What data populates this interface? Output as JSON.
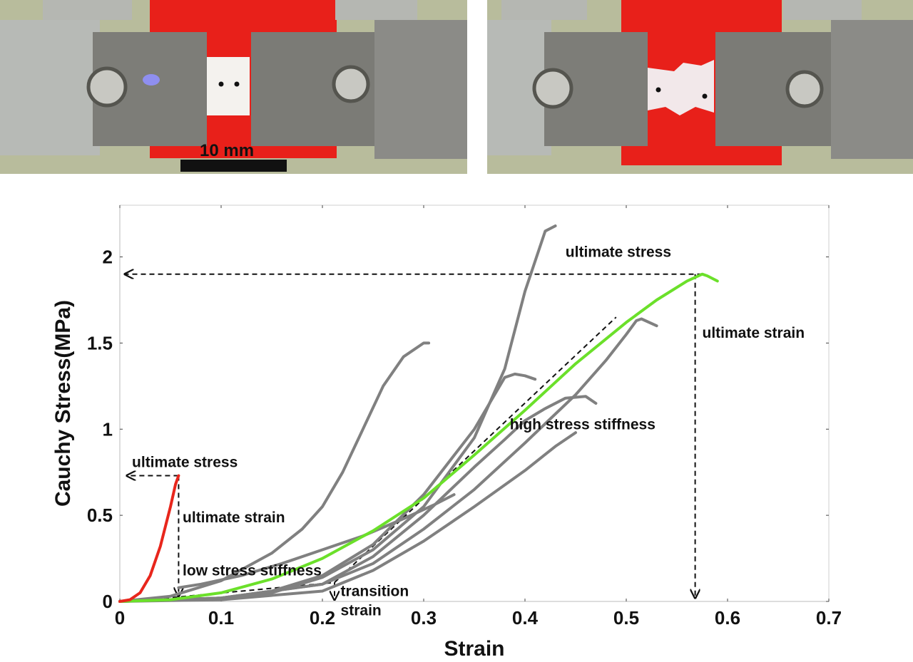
{
  "photos": {
    "scale_bar_label": "10 mm",
    "colors": {
      "background_card": "#e8201a",
      "clamp_metal": "#7d7d78",
      "grip_metal": "#b9bcb8",
      "specimen": "#f4f2ee"
    }
  },
  "chart_data": {
    "type": "line",
    "title": "",
    "xlabel": "Strain",
    "ylabel": "Cauchy Stress(MPa)",
    "xlim": [
      0,
      0.7
    ],
    "ylim": [
      0,
      2.3
    ],
    "xticks": [
      0,
      0.1,
      0.2,
      0.3,
      0.4,
      0.5,
      0.6,
      0.7
    ],
    "xtick_labels": [
      "0",
      "0.1",
      "0.2",
      "0.3",
      "0.4",
      "0.5",
      "0.6",
      "0.7"
    ],
    "yticks": [
      0,
      0.5,
      1,
      1.5,
      2
    ],
    "ytick_labels": [
      "0",
      "0.5",
      "1",
      "1.5",
      "2"
    ],
    "grid": false,
    "colors": {
      "red": "#e8261c",
      "green": "#6be02a",
      "gray": "#808080",
      "dashed": "#111111"
    },
    "series": [
      {
        "color": "red",
        "points": [
          [
            0,
            0
          ],
          [
            0.01,
            0.01
          ],
          [
            0.02,
            0.05
          ],
          [
            0.03,
            0.15
          ],
          [
            0.04,
            0.32
          ],
          [
            0.05,
            0.55
          ],
          [
            0.055,
            0.68
          ],
          [
            0.058,
            0.73
          ]
        ]
      },
      {
        "color": "green",
        "points": [
          [
            0,
            0
          ],
          [
            0.05,
            0.01
          ],
          [
            0.1,
            0.05
          ],
          [
            0.15,
            0.13
          ],
          [
            0.2,
            0.25
          ],
          [
            0.25,
            0.41
          ],
          [
            0.3,
            0.6
          ],
          [
            0.35,
            0.85
          ],
          [
            0.4,
            1.11
          ],
          [
            0.45,
            1.38
          ],
          [
            0.5,
            1.62
          ],
          [
            0.53,
            1.75
          ],
          [
            0.56,
            1.86
          ],
          [
            0.575,
            1.9
          ],
          [
            0.58,
            1.89
          ],
          [
            0.59,
            1.86
          ]
        ]
      },
      {
        "color": "gray",
        "points": [
          [
            0,
            0
          ],
          [
            0.1,
            0.02
          ],
          [
            0.15,
            0.06
          ],
          [
            0.2,
            0.15
          ],
          [
            0.25,
            0.33
          ],
          [
            0.3,
            0.62
          ],
          [
            0.35,
            1.0
          ],
          [
            0.38,
            1.3
          ],
          [
            0.39,
            1.32
          ],
          [
            0.4,
            1.31
          ],
          [
            0.41,
            1.29
          ]
        ]
      },
      {
        "color": "gray",
        "points": [
          [
            0,
            0
          ],
          [
            0.1,
            0.02
          ],
          [
            0.15,
            0.05
          ],
          [
            0.2,
            0.14
          ],
          [
            0.25,
            0.3
          ],
          [
            0.3,
            0.55
          ],
          [
            0.35,
            0.95
          ],
          [
            0.38,
            1.35
          ],
          [
            0.4,
            1.8
          ],
          [
            0.42,
            2.15
          ],
          [
            0.43,
            2.18
          ]
        ]
      },
      {
        "color": "gray",
        "points": [
          [
            0,
            0
          ],
          [
            0.1,
            0.02
          ],
          [
            0.2,
            0.1
          ],
          [
            0.25,
            0.22
          ],
          [
            0.3,
            0.42
          ],
          [
            0.35,
            0.65
          ],
          [
            0.4,
            0.92
          ],
          [
            0.45,
            1.2
          ],
          [
            0.48,
            1.4
          ],
          [
            0.5,
            1.55
          ],
          [
            0.51,
            1.63
          ],
          [
            0.515,
            1.64
          ],
          [
            0.53,
            1.6
          ]
        ]
      },
      {
        "color": "gray",
        "points": [
          [
            0,
            0
          ],
          [
            0.1,
            0.02
          ],
          [
            0.2,
            0.1
          ],
          [
            0.25,
            0.26
          ],
          [
            0.3,
            0.5
          ],
          [
            0.35,
            0.78
          ],
          [
            0.38,
            0.94
          ],
          [
            0.4,
            1.05
          ],
          [
            0.42,
            1.12
          ],
          [
            0.44,
            1.18
          ],
          [
            0.46,
            1.19
          ],
          [
            0.47,
            1.15
          ]
        ]
      },
      {
        "color": "gray",
        "points": [
          [
            0,
            0
          ],
          [
            0.05,
            0.03
          ],
          [
            0.1,
            0.12
          ],
          [
            0.15,
            0.28
          ],
          [
            0.18,
            0.42
          ],
          [
            0.2,
            0.55
          ],
          [
            0.22,
            0.75
          ],
          [
            0.24,
            1.0
          ],
          [
            0.26,
            1.25
          ],
          [
            0.28,
            1.42
          ],
          [
            0.3,
            1.5
          ],
          [
            0.305,
            1.5
          ]
        ]
      },
      {
        "color": "gray",
        "points": [
          [
            0.058,
            0.08
          ],
          [
            0.08,
            0.1
          ],
          [
            0.12,
            0.15
          ],
          [
            0.16,
            0.22
          ],
          [
            0.2,
            0.3
          ],
          [
            0.24,
            0.38
          ],
          [
            0.28,
            0.48
          ],
          [
            0.31,
            0.56
          ],
          [
            0.33,
            0.62
          ]
        ]
      },
      {
        "color": "gray",
        "points": [
          [
            0,
            0
          ],
          [
            0.1,
            0.01
          ],
          [
            0.2,
            0.06
          ],
          [
            0.25,
            0.18
          ],
          [
            0.3,
            0.35
          ],
          [
            0.35,
            0.55
          ],
          [
            0.4,
            0.76
          ],
          [
            0.43,
            0.9
          ],
          [
            0.45,
            0.98
          ]
        ]
      }
    ],
    "annotations": [
      {
        "text": "ultimate stress",
        "x": 0.44,
        "y": 2.0
      },
      {
        "text": "ultimate strain",
        "x": 0.575,
        "y": 1.53
      },
      {
        "text": "high stress stiffness",
        "x": 0.385,
        "y": 1.0
      },
      {
        "text": "ultimate stress",
        "x": 0.012,
        "y": 0.78
      },
      {
        "text": "ultimate strain",
        "x": 0.062,
        "y": 0.46
      },
      {
        "text": "low stress stiffness",
        "x": 0.062,
        "y": 0.15
      },
      {
        "text": "transition",
        "x": 0.218,
        "y": 0.03
      },
      {
        "text": "strain",
        "x": 0.218,
        "y": -0.08
      }
    ],
    "dashed_lines": [
      {
        "points": [
          [
            0.575,
            1.9
          ],
          [
            0.005,
            1.9
          ]
        ],
        "arrow": "end"
      },
      {
        "points": [
          [
            0.568,
            1.9
          ],
          [
            0.568,
            0.02
          ]
        ],
        "arrow": "end"
      },
      {
        "points": [
          [
            0.058,
            0.73
          ],
          [
            0.007,
            0.73
          ]
        ],
        "arrow": "end"
      },
      {
        "points": [
          [
            0.058,
            0.73
          ],
          [
            0.058,
            0.03
          ]
        ],
        "arrow": "end"
      },
      {
        "points": [
          [
            0.01,
            0.0
          ],
          [
            0.212,
            0.11
          ]
        ],
        "arrow": "none"
      },
      {
        "points": [
          [
            0.212,
            0.11
          ],
          [
            0.212,
            0.01
          ]
        ],
        "arrow": "end"
      },
      {
        "points": [
          [
            0.212,
            0.11
          ],
          [
            0.49,
            1.65
          ]
        ],
        "arrow": "none"
      }
    ]
  }
}
